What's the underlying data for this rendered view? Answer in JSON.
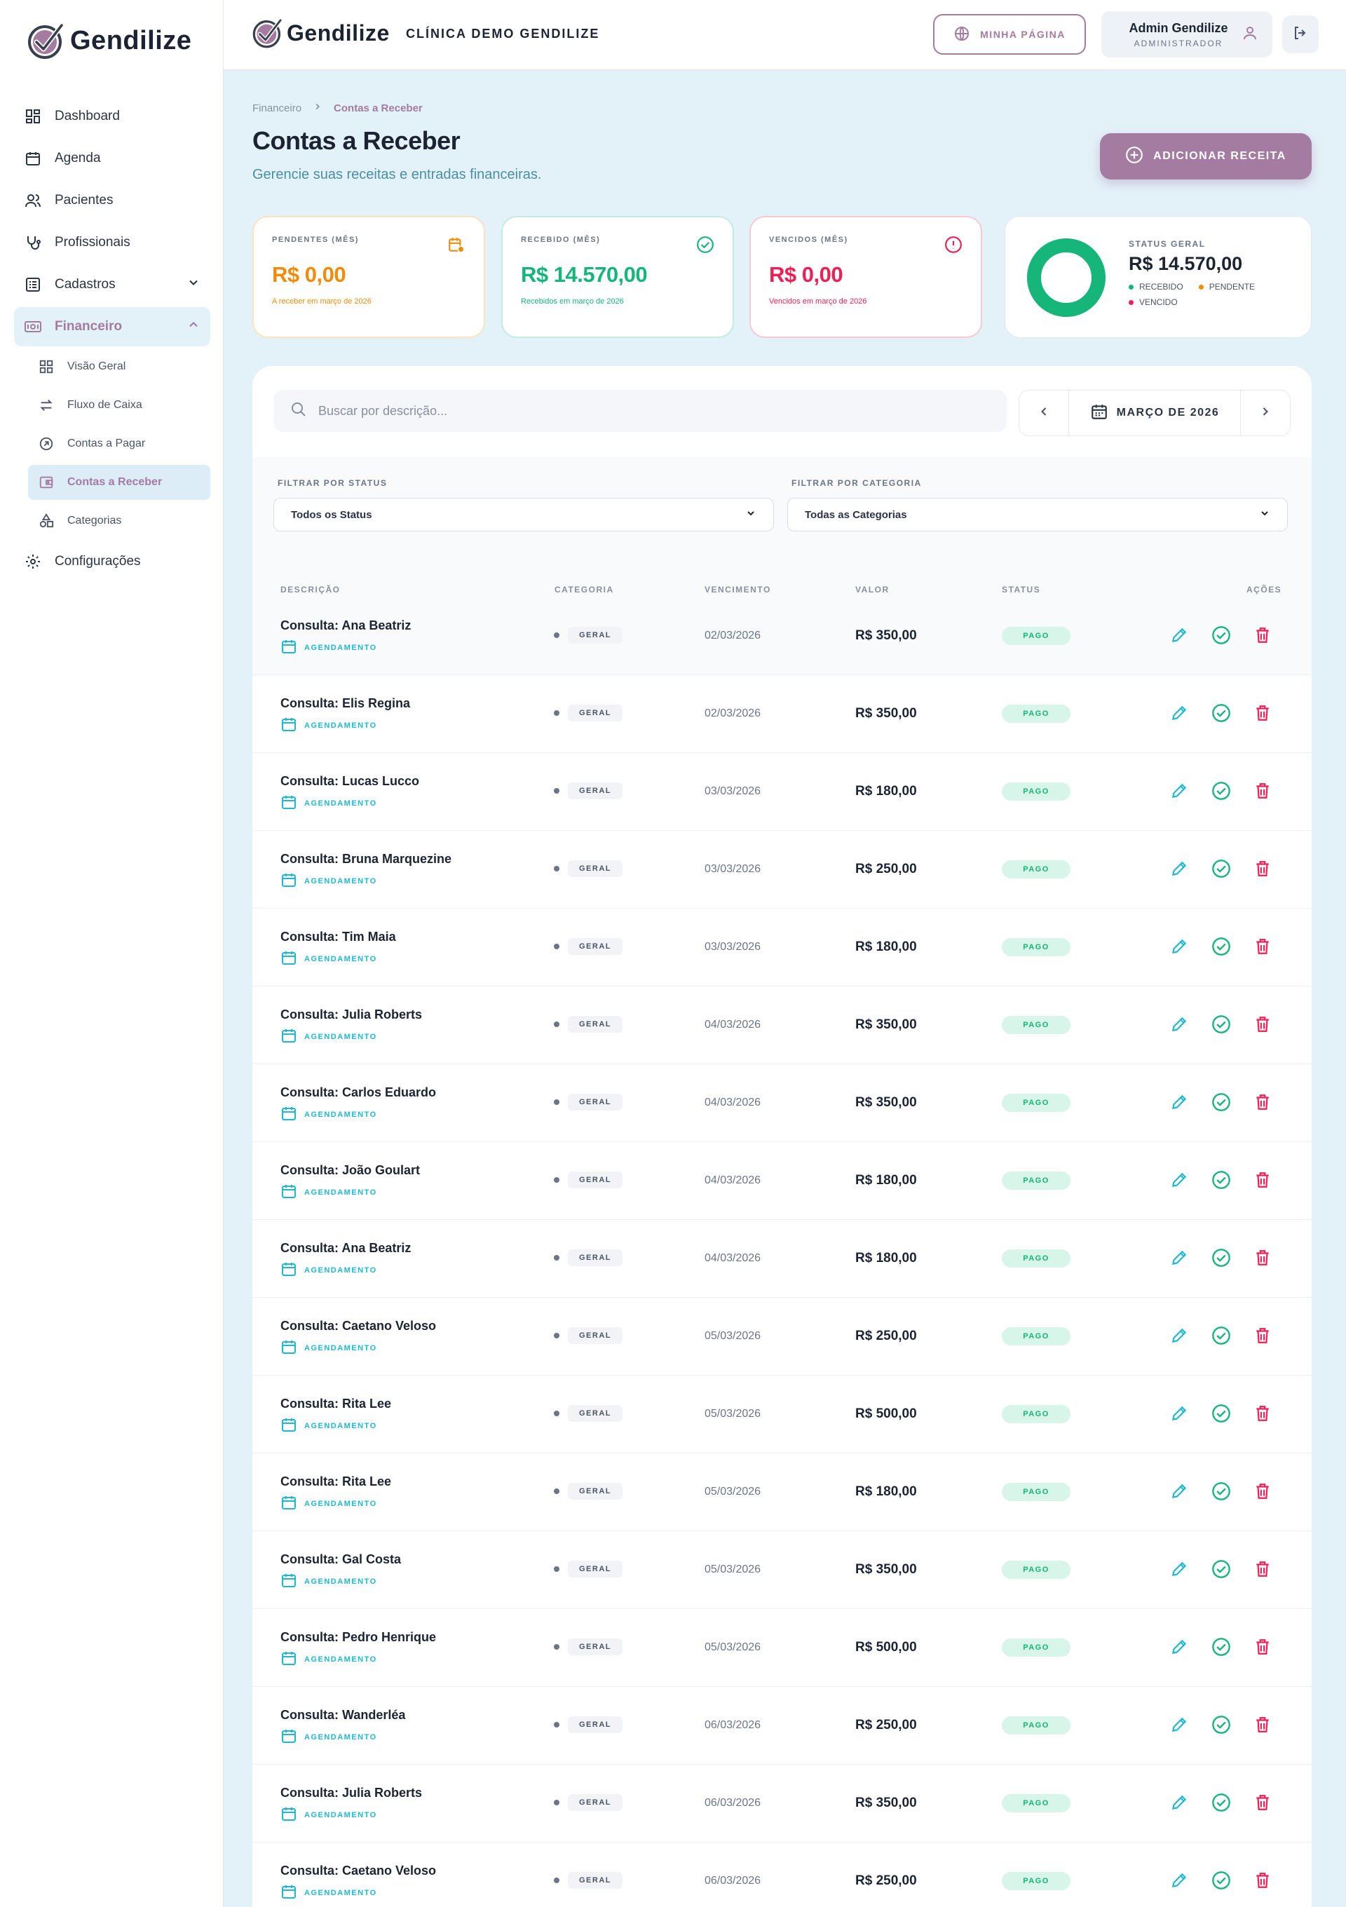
{
  "brand": {
    "name": "Gendilize",
    "accent": "#a47ba1"
  },
  "sidebar": {
    "items": [
      {
        "label": "Dashboard",
        "icon": "grid-icon"
      },
      {
        "label": "Agenda",
        "icon": "calendar-icon"
      },
      {
        "label": "Pacientes",
        "icon": "users-icon"
      },
      {
        "label": "Profissionais",
        "icon": "stethoscope-icon"
      },
      {
        "label": "Cadastros",
        "icon": "list-icon"
      },
      {
        "label": "Financeiro",
        "icon": "money-icon"
      },
      {
        "label": "Configurações",
        "icon": "gear-icon"
      }
    ],
    "financeiro_sub": [
      {
        "label": "Visão Geral",
        "icon": "grid-icon"
      },
      {
        "label": "Fluxo de Caixa",
        "icon": "swap-icon"
      },
      {
        "label": "Contas a Pagar",
        "icon": "arrow-up-right-icon"
      },
      {
        "label": "Contas a Receber",
        "icon": "wallet-icon"
      },
      {
        "label": "Categorias",
        "icon": "shapes-icon"
      }
    ]
  },
  "header": {
    "clinic": "CLÍNICA DEMO GENDILIZE",
    "my_page": "MINHA PÁGINA",
    "user_name": "Admin Gendilize",
    "user_role": "ADMINISTRADOR"
  },
  "breadcrumb": {
    "parent": "Financeiro",
    "current": "Contas a Receber"
  },
  "page": {
    "title": "Contas a Receber",
    "subtitle": "Gerencie suas receitas e entradas financeiras.",
    "add_button": "ADICIONAR RECEITA"
  },
  "stats": {
    "pendentes": {
      "label": "PENDENTES (MÊS)",
      "value": "R$ 0,00",
      "note": "A receber em março de 2026",
      "color": "#f08c0a"
    },
    "recebido": {
      "label": "RECEBIDO (MÊS)",
      "value": "R$ 14.570,00",
      "note": "Recebidos em março de 2026",
      "color": "#16b57a"
    },
    "vencidos": {
      "label": "VENCIDOS (MÊS)",
      "value": "R$ 0,00",
      "note": "Vencidos em março de 2026",
      "color": "#ee1f53"
    },
    "geral": {
      "label": "STATUS GERAL",
      "total": "R$ 14.570,00",
      "legend": [
        {
          "label": "RECEBIDO",
          "color": "#16b57a"
        },
        {
          "label": "PENDENTE",
          "color": "#f08c0a"
        },
        {
          "label": "VENCIDO",
          "color": "#ee1f53"
        }
      ],
      "received_fraction": 1.0
    }
  },
  "toolbar": {
    "search_placeholder": "Buscar por descrição...",
    "month": "MARÇO DE 2026"
  },
  "filters": {
    "status_label": "FILTRAR POR STATUS",
    "status_value": "Todos os Status",
    "category_label": "FILTRAR POR CATEGORIA",
    "category_value": "Todas as Categorias"
  },
  "table": {
    "headers": [
      "DESCRIÇÃO",
      "CATEGORIA",
      "VENCIMENTO",
      "VALOR",
      "STATUS",
      "AÇÕES"
    ],
    "tag": "AGENDAMENTO",
    "rows": [
      {
        "desc": "Consulta: Ana Beatriz",
        "cat": "GERAL",
        "date": "02/03/2026",
        "value": "R$ 350,00",
        "status": "PAGO"
      },
      {
        "desc": "Consulta: Elis Regina",
        "cat": "GERAL",
        "date": "02/03/2026",
        "value": "R$ 350,00",
        "status": "PAGO"
      },
      {
        "desc": "Consulta: Lucas Lucco",
        "cat": "GERAL",
        "date": "03/03/2026",
        "value": "R$ 180,00",
        "status": "PAGO"
      },
      {
        "desc": "Consulta: Bruna Marquezine",
        "cat": "GERAL",
        "date": "03/03/2026",
        "value": "R$ 250,00",
        "status": "PAGO"
      },
      {
        "desc": "Consulta: Tim Maia",
        "cat": "GERAL",
        "date": "03/03/2026",
        "value": "R$ 180,00",
        "status": "PAGO"
      },
      {
        "desc": "Consulta: Julia Roberts",
        "cat": "GERAL",
        "date": "04/03/2026",
        "value": "R$ 350,00",
        "status": "PAGO"
      },
      {
        "desc": "Consulta: Carlos Eduardo",
        "cat": "GERAL",
        "date": "04/03/2026",
        "value": "R$ 350,00",
        "status": "PAGO"
      },
      {
        "desc": "Consulta: João Goulart",
        "cat": "GERAL",
        "date": "04/03/2026",
        "value": "R$ 180,00",
        "status": "PAGO"
      },
      {
        "desc": "Consulta: Ana Beatriz",
        "cat": "GERAL",
        "date": "04/03/2026",
        "value": "R$ 180,00",
        "status": "PAGO"
      },
      {
        "desc": "Consulta: Caetano Veloso",
        "cat": "GERAL",
        "date": "05/03/2026",
        "value": "R$ 250,00",
        "status": "PAGO"
      },
      {
        "desc": "Consulta: Rita Lee",
        "cat": "GERAL",
        "date": "05/03/2026",
        "value": "R$ 500,00",
        "status": "PAGO"
      },
      {
        "desc": "Consulta: Rita Lee",
        "cat": "GERAL",
        "date": "05/03/2026",
        "value": "R$ 180,00",
        "status": "PAGO"
      },
      {
        "desc": "Consulta: Gal Costa",
        "cat": "GERAL",
        "date": "05/03/2026",
        "value": "R$ 350,00",
        "status": "PAGO"
      },
      {
        "desc": "Consulta: Pedro Henrique",
        "cat": "GERAL",
        "date": "05/03/2026",
        "value": "R$ 500,00",
        "status": "PAGO"
      },
      {
        "desc": "Consulta: Wanderléa",
        "cat": "GERAL",
        "date": "06/03/2026",
        "value": "R$ 250,00",
        "status": "PAGO"
      },
      {
        "desc": "Consulta: Julia Roberts",
        "cat": "GERAL",
        "date": "06/03/2026",
        "value": "R$ 350,00",
        "status": "PAGO"
      },
      {
        "desc": "Consulta: Caetano Veloso",
        "cat": "GERAL",
        "date": "06/03/2026",
        "value": "R$ 250,00",
        "status": "PAGO"
      }
    ]
  }
}
